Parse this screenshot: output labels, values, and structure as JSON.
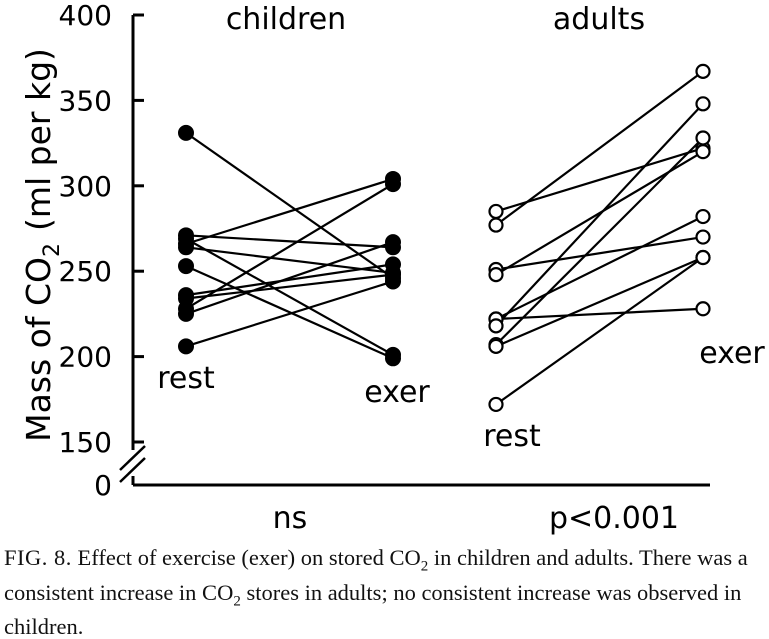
{
  "chart_data": {
    "type": "line",
    "ylabel": "Mass of CO",
    "ylabel_sub": "2",
    "ylabel_unit": "(ml per kg)",
    "yticks": [
      0,
      150,
      200,
      250,
      300,
      350,
      400
    ],
    "ylim": [
      150,
      400
    ],
    "y_axis_break": true,
    "grid": false,
    "legend": "none",
    "panels": [
      {
        "title": "children",
        "significance": "ns",
        "marker": "filled-circle",
        "x": [
          "rest",
          "exer"
        ],
        "x_labels": [
          "rest",
          "exer"
        ],
        "pairs": [
          [
            331,
            246
          ],
          [
            271,
            264
          ],
          [
            269,
            201
          ],
          [
            266,
            304
          ],
          [
            264,
            249
          ],
          [
            253,
            199
          ],
          [
            236,
            254
          ],
          [
            234,
            248
          ],
          [
            228,
            301
          ],
          [
            225,
            267
          ],
          [
            206,
            244
          ]
        ]
      },
      {
        "title": "adults",
        "significance": "p<0.001",
        "marker": "open-circle",
        "x": [
          "rest",
          "exer"
        ],
        "x_labels": [
          "rest",
          "exer"
        ],
        "pairs": [
          [
            285,
            322
          ],
          [
            277,
            367
          ],
          [
            251,
            270
          ],
          [
            248,
            320
          ],
          [
            222,
            282
          ],
          [
            222,
            228
          ],
          [
            218,
            348
          ],
          [
            207,
            328
          ],
          [
            206,
            258
          ],
          [
            172,
            258
          ]
        ]
      }
    ]
  },
  "caption": {
    "label": "FIG. 8.",
    "text_a": " Effect of exercise (exer) on stored CO",
    "sub_a": "2",
    "text_b": " in children and adults. There was a consistent increase in CO",
    "sub_b": "2",
    "text_c": " stores in adults; no consistent increase was observed in children."
  }
}
